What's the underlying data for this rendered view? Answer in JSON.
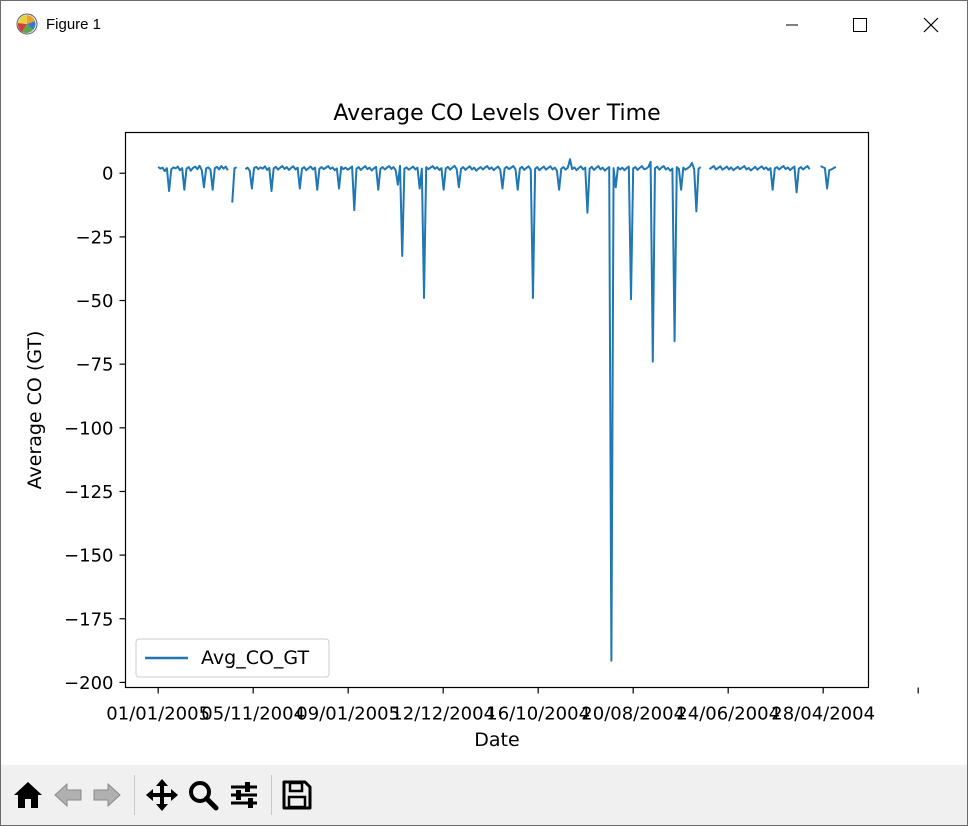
{
  "window": {
    "title": "Figure 1"
  },
  "toolbar": {
    "buttons": [
      {
        "name": "home-button",
        "icon": "home-icon"
      },
      {
        "name": "back-button",
        "icon": "back-arrow-icon"
      },
      {
        "name": "forward-button",
        "icon": "forward-arrow-icon"
      },
      {
        "name": "pan-button",
        "icon": "move-icon"
      },
      {
        "name": "zoom-button",
        "icon": "magnifier-icon"
      },
      {
        "name": "configure-subplots-button",
        "icon": "sliders-icon"
      },
      {
        "name": "save-button",
        "icon": "floppy-disk-icon"
      }
    ]
  },
  "chart_data": {
    "type": "line",
    "title": "Average CO Levels Over Time",
    "xlabel": "Date",
    "ylabel": "Average CO (GT)",
    "x_tick_labels": [
      "01/01/2005",
      "05/11/2004",
      "09/01/2005",
      "12/12/2004",
      "16/10/2004",
      "20/08/2004",
      "24/06/2004",
      "28/04/2004"
    ],
    "y_ticks": [
      0,
      -25,
      -50,
      -75,
      -100,
      -125,
      -150,
      -175,
      -200
    ],
    "y_tick_labels": [
      "0",
      "−25",
      "−50",
      "−75",
      "−100",
      "−125",
      "−150",
      "−175",
      "−200"
    ],
    "ylim": [
      -202,
      16
    ],
    "xlim": [
      -15,
      326
    ],
    "grid": false,
    "legend": {
      "location": "lower left",
      "entries": [
        "Avg_CO_GT"
      ]
    },
    "series": [
      {
        "name": "Avg_CO_GT",
        "color": "#1f77b4",
        "points": [
          [
            0,
            2.5
          ],
          [
            1,
            1.8
          ],
          [
            2,
            2.2
          ],
          [
            3,
            0.8
          ],
          [
            4,
            2.0
          ],
          [
            5,
            -7.0
          ],
          [
            6,
            1.5
          ],
          [
            7,
            2.3
          ],
          [
            8,
            1.9
          ],
          [
            9,
            2.6
          ],
          [
            10,
            1.2
          ],
          [
            11,
            2.0
          ],
          [
            12,
            -6.5
          ],
          [
            13,
            1.8
          ],
          [
            14,
            2.4
          ],
          [
            15,
            1.0
          ],
          [
            16,
            2.1
          ],
          [
            17,
            2.6
          ],
          [
            18,
            1.6
          ],
          [
            19,
            2.9
          ],
          [
            20,
            1.2
          ],
          [
            21,
            -5.5
          ],
          [
            22,
            1.9
          ],
          [
            23,
            2.3
          ],
          [
            24,
            1.4
          ],
          [
            25,
            -6.5
          ],
          [
            26,
            2.0
          ],
          [
            27,
            2.5
          ],
          [
            28,
            1.5
          ],
          [
            29,
            2.8
          ],
          [
            30,
            1.8
          ],
          [
            31,
            2.6
          ],
          [
            32,
            1.2
          ],
          [
            34,
            -11.5
          ],
          [
            35,
            1.9
          ],
          [
            36,
            2.4
          ],
          [
            40,
            1.6
          ],
          [
            41,
            2.2
          ],
          [
            42,
            1.0
          ],
          [
            43,
            -6.0
          ],
          [
            44,
            2.0
          ],
          [
            45,
            2.5
          ],
          [
            46,
            1.6
          ],
          [
            47,
            2.3
          ],
          [
            48,
            1.8
          ],
          [
            49,
            2.7
          ],
          [
            50,
            1.3
          ],
          [
            51,
            2.1
          ],
          [
            52,
            -7.0
          ],
          [
            53,
            1.9
          ],
          [
            54,
            2.5
          ],
          [
            55,
            1.4
          ],
          [
            56,
            2.2
          ],
          [
            57,
            2.8
          ],
          [
            58,
            1.7
          ],
          [
            59,
            2.4
          ],
          [
            60,
            1.3
          ],
          [
            61,
            2.1
          ],
          [
            62,
            2.7
          ],
          [
            63,
            1.5
          ],
          [
            64,
            2.2
          ],
          [
            65,
            -6.0
          ],
          [
            66,
            1.8
          ],
          [
            67,
            2.4
          ],
          [
            68,
            1.2
          ],
          [
            69,
            2.0
          ],
          [
            70,
            2.6
          ],
          [
            71,
            1.5
          ],
          [
            72,
            2.2
          ],
          [
            73,
            -6.5
          ],
          [
            74,
            1.8
          ],
          [
            75,
            2.4
          ],
          [
            76,
            1.6
          ],
          [
            77,
            2.2
          ],
          [
            78,
            2.8
          ],
          [
            79,
            1.7
          ],
          [
            80,
            2.3
          ],
          [
            81,
            1.2
          ],
          [
            82,
            1.9
          ],
          [
            83,
            -6.0
          ],
          [
            84,
            2.5
          ],
          [
            85,
            1.6
          ],
          [
            86,
            2.2
          ],
          [
            87,
            1.4
          ],
          [
            88,
            2.0
          ],
          [
            89,
            2.6
          ],
          [
            90,
            -14.5
          ],
          [
            91,
            1.8
          ],
          [
            92,
            2.4
          ],
          [
            93,
            1.3
          ],
          [
            94,
            2.1
          ],
          [
            95,
            2.8
          ],
          [
            96,
            1.6
          ],
          [
            97,
            2.2
          ],
          [
            98,
            1.1
          ],
          [
            99,
            1.9
          ],
          [
            100,
            2.5
          ],
          [
            101,
            -6.5
          ],
          [
            102,
            1.8
          ],
          [
            103,
            2.4
          ],
          [
            104,
            1.5
          ],
          [
            105,
            2.2
          ],
          [
            106,
            2.8
          ],
          [
            107,
            1.7
          ],
          [
            108,
            2.4
          ],
          [
            109,
            1.2
          ],
          [
            110,
            -4.5
          ],
          [
            111,
            2.9
          ],
          [
            112,
            -32.5
          ],
          [
            113,
            1.8
          ],
          [
            114,
            2.3
          ],
          [
            115,
            1.4
          ],
          [
            116,
            2.0
          ],
          [
            117,
            2.6
          ],
          [
            118,
            1.5
          ],
          [
            119,
            2.2
          ],
          [
            120,
            -6.0
          ],
          [
            121,
            1.8
          ],
          [
            122,
            -49.0
          ],
          [
            123,
            2.4
          ],
          [
            124,
            1.6
          ],
          [
            125,
            2.2
          ],
          [
            126,
            2.8
          ],
          [
            127,
            1.7
          ],
          [
            128,
            2.4
          ],
          [
            129,
            1.3
          ],
          [
            130,
            2.0
          ],
          [
            131,
            -6.5
          ],
          [
            132,
            1.9
          ],
          [
            133,
            2.5
          ],
          [
            134,
            1.4
          ],
          [
            135,
            2.2
          ],
          [
            136,
            2.9
          ],
          [
            137,
            1.6
          ],
          [
            138,
            -5.5
          ],
          [
            139,
            1.8
          ],
          [
            140,
            2.4
          ],
          [
            141,
            1.3
          ],
          [
            142,
            2.1
          ],
          [
            143,
            2.7
          ],
          [
            144,
            1.5
          ],
          [
            145,
            2.2
          ],
          [
            146,
            1.0
          ],
          [
            147,
            1.8
          ],
          [
            148,
            2.4
          ],
          [
            149,
            1.5
          ],
          [
            150,
            2.2
          ],
          [
            151,
            2.8
          ],
          [
            152,
            1.6
          ],
          [
            153,
            2.3
          ],
          [
            154,
            1.2
          ],
          [
            155,
            2.0
          ],
          [
            156,
            2.6
          ],
          [
            157,
            1.4
          ],
          [
            158,
            -6.0
          ],
          [
            159,
            1.9
          ],
          [
            160,
            2.5
          ],
          [
            161,
            1.6
          ],
          [
            162,
            2.2
          ],
          [
            163,
            2.8
          ],
          [
            164,
            1.5
          ],
          [
            165,
            -6.5
          ],
          [
            166,
            1.9
          ],
          [
            167,
            2.5
          ],
          [
            168,
            1.3
          ],
          [
            169,
            2.1
          ],
          [
            170,
            2.7
          ],
          [
            171,
            1.5
          ],
          [
            172,
            -49.0
          ],
          [
            173,
            1.8
          ],
          [
            174,
            2.4
          ],
          [
            175,
            1.2
          ],
          [
            176,
            2.0
          ],
          [
            177,
            2.6
          ],
          [
            178,
            1.4
          ],
          [
            179,
            2.1
          ],
          [
            180,
            2.7
          ],
          [
            181,
            1.5
          ],
          [
            182,
            2.2
          ],
          [
            183,
            1.0
          ],
          [
            184,
            -6.5
          ],
          [
            185,
            1.8
          ],
          [
            186,
            2.4
          ],
          [
            187,
            1.4
          ],
          [
            188,
            2.2
          ],
          [
            189,
            5.5
          ],
          [
            190,
            1.6
          ],
          [
            191,
            2.3
          ],
          [
            192,
            1.2
          ],
          [
            193,
            2.0
          ],
          [
            194,
            2.7
          ],
          [
            195,
            1.5
          ],
          [
            196,
            2.2
          ],
          [
            197,
            -15.5
          ],
          [
            198,
            1.8
          ],
          [
            199,
            2.5
          ],
          [
            200,
            1.3
          ],
          [
            201,
            2.1
          ],
          [
            202,
            2.8
          ],
          [
            203,
            1.5
          ],
          [
            204,
            2.2
          ],
          [
            205,
            1.0
          ],
          [
            206,
            1.8
          ],
          [
            207,
            2.4
          ],
          [
            208,
            -191.5
          ],
          [
            209,
            2.0
          ],
          [
            210,
            -5.5
          ],
          [
            211,
            2.3
          ],
          [
            212,
            1.5
          ],
          [
            213,
            2.2
          ],
          [
            214,
            1.2
          ],
          [
            215,
            2.0
          ],
          [
            216,
            2.6
          ],
          [
            217,
            -49.5
          ],
          [
            218,
            1.9
          ],
          [
            219,
            2.4
          ],
          [
            220,
            1.3
          ],
          [
            221,
            2.1
          ],
          [
            222,
            2.8
          ],
          [
            223,
            1.6
          ],
          [
            224,
            1.8
          ],
          [
            225,
            2.5
          ],
          [
            226,
            4.5
          ],
          [
            227,
            -74.0
          ],
          [
            228,
            2.0
          ],
          [
            229,
            2.6
          ],
          [
            230,
            1.4
          ],
          [
            231,
            2.2
          ],
          [
            232,
            2.8
          ],
          [
            233,
            1.5
          ],
          [
            234,
            2.1
          ],
          [
            235,
            1.0
          ],
          [
            236,
            1.8
          ],
          [
            237,
            -66.0
          ],
          [
            238,
            2.4
          ],
          [
            239,
            1.6
          ],
          [
            240,
            -6.5
          ],
          [
            241,
            2.2
          ],
          [
            242,
            1.4
          ],
          [
            243,
            2.0
          ],
          [
            244,
            2.6
          ],
          [
            245,
            4.0
          ],
          [
            246,
            1.5
          ],
          [
            247,
            -15.0
          ],
          [
            248,
            1.8
          ],
          [
            249,
            2.4
          ],
          [
            253,
            1.6
          ],
          [
            254,
            2.2
          ],
          [
            255,
            2.8
          ],
          [
            256,
            1.5
          ],
          [
            257,
            2.1
          ],
          [
            258,
            2.7
          ],
          [
            259,
            1.4
          ],
          [
            260,
            2.0
          ],
          [
            261,
            2.6
          ],
          [
            262,
            1.5
          ],
          [
            263,
            2.3
          ],
          [
            264,
            1.2
          ],
          [
            265,
            1.9
          ],
          [
            266,
            2.5
          ],
          [
            267,
            1.6
          ],
          [
            268,
            2.2
          ],
          [
            269,
            2.8
          ],
          [
            270,
            1.5
          ],
          [
            271,
            2.1
          ],
          [
            272,
            1.1
          ],
          [
            273,
            1.8
          ],
          [
            274,
            2.5
          ],
          [
            275,
            1.4
          ],
          [
            276,
            2.1
          ],
          [
            277,
            2.7
          ],
          [
            278,
            1.6
          ],
          [
            279,
            2.3
          ],
          [
            280,
            1.3
          ],
          [
            281,
            2.0
          ],
          [
            282,
            -6.5
          ],
          [
            283,
            1.9
          ],
          [
            284,
            2.4
          ],
          [
            285,
            1.5
          ],
          [
            286,
            2.2
          ],
          [
            287,
            2.8
          ],
          [
            288,
            1.6
          ],
          [
            289,
            2.3
          ],
          [
            290,
            1.2
          ],
          [
            291,
            2.0
          ],
          [
            292,
            2.6
          ],
          [
            293,
            -7.5
          ],
          [
            294,
            1.8
          ],
          [
            295,
            2.4
          ],
          [
            296,
            1.5
          ],
          [
            297,
            2.2
          ],
          [
            298,
            2.8
          ],
          [
            299,
            1.6
          ],
          [
            304,
            2.8
          ],
          [
            305,
            2.4
          ],
          [
            306,
            2.0
          ],
          [
            307,
            -6.0
          ],
          [
            308,
            1.2
          ],
          [
            309,
            1.5
          ],
          [
            310,
            2.0
          ],
          [
            311,
            2.5
          ]
        ]
      }
    ]
  }
}
